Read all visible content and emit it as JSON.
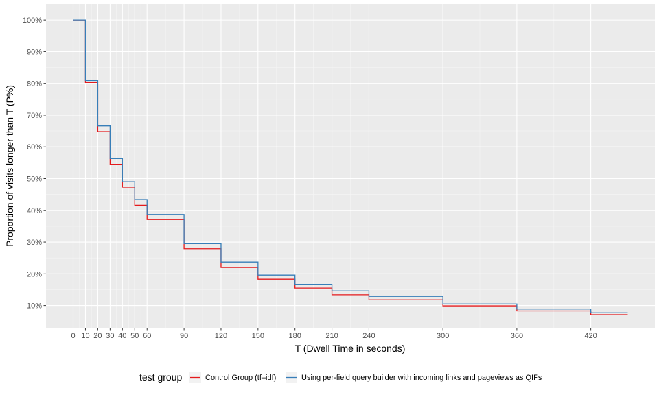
{
  "chart_data": {
    "type": "line",
    "title": "",
    "xlabel": "T (Dwell Time in seconds)",
    "ylabel": "Proportion of visits longer than T (P%)",
    "xlim": [
      -22,
      472
    ],
    "ylim": [
      3,
      105
    ],
    "x_ticks": [
      0,
      10,
      20,
      30,
      40,
      50,
      60,
      90,
      120,
      150,
      180,
      210,
      240,
      300,
      360,
      420
    ],
    "x_tick_labels": [
      "0",
      "10",
      "20",
      "30",
      "40",
      "50",
      "60",
      "90",
      "120",
      "150",
      "180",
      "210",
      "240",
      "300",
      "360",
      "420"
    ],
    "y_ticks": [
      10,
      20,
      30,
      40,
      50,
      60,
      70,
      80,
      90,
      100
    ],
    "y_tick_labels": [
      "10%",
      "20%",
      "30%",
      "40%",
      "50%",
      "60%",
      "70%",
      "80%",
      "90%",
      "100%"
    ],
    "grid": true,
    "legend_position": "bottom",
    "legend_title": "test group",
    "series": [
      {
        "name": "Control Group (tf–idf)",
        "color": "#e41a1c",
        "step_x": [
          0,
          10,
          20,
          30,
          40,
          50,
          60,
          90,
          120,
          150,
          180,
          210,
          240,
          300,
          360,
          420,
          450
        ],
        "step_y": [
          100,
          80.3,
          64.8,
          54.5,
          47.3,
          41.6,
          37.1,
          27.9,
          22.0,
          18.3,
          15.5,
          13.4,
          11.8,
          9.9,
          8.3,
          7.1
        ]
      },
      {
        "name": "Using per-field query builder with incoming links and pageviews as QIFs",
        "color": "#377eb8",
        "step_x": [
          0,
          10,
          20,
          30,
          40,
          50,
          60,
          90,
          120,
          150,
          180,
          210,
          240,
          300,
          360,
          420,
          450
        ],
        "step_y": [
          100,
          80.9,
          66.6,
          56.3,
          49.0,
          43.4,
          38.7,
          29.5,
          23.7,
          19.6,
          16.7,
          14.6,
          12.9,
          10.5,
          8.9,
          7.7
        ]
      }
    ]
  }
}
